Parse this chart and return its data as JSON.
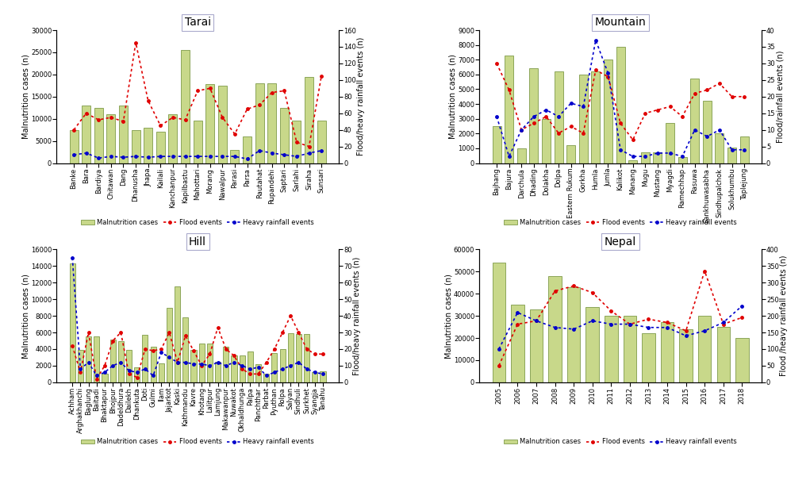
{
  "tarai": {
    "title": "Tarai",
    "categories": [
      "Banke",
      "Bara",
      "Bardiya",
      "Chitawan",
      "Dang",
      "Dhanusha",
      "Jhapa",
      "Kailali",
      "Kanchanpur",
      "Kapilbastu",
      "Mahottari",
      "Morang",
      "Nawalpur",
      "Parasi",
      "Parsa",
      "Rautahat",
      "Rupandehi",
      "Saptari",
      "Sarlahi",
      "Siraha",
      "Sunsari"
    ],
    "mal_cases": [
      7500,
      13000,
      12500,
      11000,
      13000,
      7500,
      8000,
      7000,
      11000,
      25500,
      9500,
      17800,
      17500,
      3000,
      6000,
      18000,
      18000,
      12500,
      9500,
      19500,
      9500
    ],
    "flood": [
      40,
      60,
      52,
      55,
      50,
      145,
      75,
      45,
      55,
      52,
      87,
      90,
      55,
      35,
      65,
      70,
      85,
      87,
      25,
      20,
      105
    ],
    "heavy_rain": [
      10,
      12,
      6,
      8,
      7,
      8,
      7,
      8,
      8,
      8,
      8,
      8,
      8,
      8,
      5,
      15,
      12,
      10,
      8,
      12,
      15
    ],
    "ylim_left": [
      0,
      30000
    ],
    "ylim_right": [
      0,
      160
    ],
    "ylabel_left": "Malnutrition cases (n)",
    "ylabel_right": "Flood/heavy rainfall events (n)"
  },
  "mountain": {
    "title": "Mountain",
    "categories": [
      "Bajhang",
      "Bajura",
      "Darchula",
      "Dhading",
      "Dolakha",
      "Dolpa",
      "Eastern Rukum",
      "Gorkha",
      "Humla",
      "Jumla",
      "Kalikot",
      "Manang",
      "Mugu",
      "Mustang",
      "Myagdi",
      "Ramechhap",
      "Rasuwa",
      "Sankhuwasabha",
      "Sindhupalchok",
      "Solukhumbu",
      "Taplejung"
    ],
    "mal_cases": [
      2500,
      7300,
      1000,
      6400,
      3000,
      6200,
      1200,
      6000,
      6200,
      7000,
      7900,
      200,
      700,
      700,
      2700,
      400,
      5700,
      4200,
      2000,
      1050,
      1800
    ],
    "flood": [
      30,
      22,
      10,
      12,
      14,
      9,
      11,
      9,
      28,
      26,
      12,
      7,
      15,
      16,
      17,
      14,
      21,
      22,
      24,
      20,
      20
    ],
    "heavy_rain": [
      14,
      2,
      10,
      14,
      16,
      14,
      18,
      17,
      37,
      27,
      4,
      2,
      2,
      3,
      3,
      2,
      10,
      8,
      10,
      4,
      4
    ],
    "ylim_left": [
      0,
      9000
    ],
    "ylim_right": [
      0,
      40
    ],
    "ylabel_left": "Malnutrition cases (n)",
    "ylabel_right": "Flood/rainfall events (n)"
  },
  "hill": {
    "title": "Hill",
    "categories": [
      "Achham",
      "Arghakhanchi",
      "Baglung",
      "Baitadi",
      "Bhaktapur",
      "Bhojpur",
      "Dadeldhura",
      "Dailekh",
      "Dhankuta",
      "Doti",
      "Gulmi",
      "Ilam",
      "Jajarkot",
      "Kaski",
      "Kathmandu",
      "Kavre",
      "Khotang",
      "Lalitpur",
      "Lamjung",
      "Makawanpur",
      "Nuwakot",
      "Okhaldhunga",
      "Palpa",
      "Panchthar",
      "Parbat",
      "Pyuthan",
      "Rolpa",
      "Salyan",
      "Sindhuli",
      "Surkhet",
      "Syangja",
      "Tanahu"
    ],
    "mal_cases": [
      14300,
      3900,
      5500,
      5500,
      1000,
      5100,
      5000,
      3900,
      1800,
      5700,
      4300,
      2300,
      9000,
      11500,
      7800,
      3900,
      4700,
      4700,
      2500,
      4300,
      3200,
      3200,
      3700,
      2200,
      1000,
      3500,
      4000,
      5900,
      5800,
      5800,
      1200,
      1300
    ],
    "flood": [
      22,
      6,
      30,
      2,
      10,
      25,
      30,
      5,
      3,
      20,
      19,
      20,
      30,
      12,
      28,
      19,
      10,
      17,
      33,
      20,
      16,
      8,
      5,
      5,
      12,
      20,
      30,
      40,
      30,
      20,
      17,
      17
    ],
    "heavy_rain": [
      75,
      8,
      12,
      4,
      6,
      10,
      12,
      7,
      6,
      8,
      4,
      18,
      15,
      12,
      12,
      11,
      11,
      10,
      12,
      10,
      12,
      10,
      8,
      9,
      4,
      6,
      8,
      10,
      12,
      8,
      6,
      5
    ],
    "ylim_left": [
      0,
      16000
    ],
    "ylim_right": [
      0,
      80
    ],
    "ylabel_left": "Malnutrition cases (n)",
    "ylabel_right": "Flood/heavy rainfall events (n)"
  },
  "nepal": {
    "title": "Nepal",
    "categories": [
      "2005",
      "2006",
      "2007",
      "2008",
      "2009",
      "2010",
      "2011",
      "2012",
      "2013",
      "2014",
      "2015",
      "2016",
      "2017",
      "2018"
    ],
    "mal_cases": [
      54000,
      35000,
      33000,
      48000,
      43000,
      34000,
      30000,
      30000,
      22000,
      27000,
      24000,
      30000,
      25000,
      20000
    ],
    "flood": [
      50,
      175,
      185,
      275,
      290,
      270,
      215,
      175,
      190,
      180,
      155,
      335,
      175,
      195
    ],
    "heavy_rain": [
      100,
      210,
      185,
      165,
      160,
      185,
      175,
      175,
      165,
      165,
      140,
      155,
      180,
      230
    ],
    "ylim_left": [
      0,
      60000
    ],
    "ylim_right": [
      0,
      400
    ],
    "ylabel_left": "Malnutrition cases (n)",
    "ylabel_right": "Flood /heavy rainfall events (n)"
  },
  "bar_color": "#c8d88a",
  "bar_edgecolor": "#6a8a30",
  "flood_color": "#e00000",
  "rain_color": "#0000cc",
  "background_color": "#ffffff",
  "title_fontsize": 10,
  "tick_fontsize": 6,
  "label_fontsize": 7
}
